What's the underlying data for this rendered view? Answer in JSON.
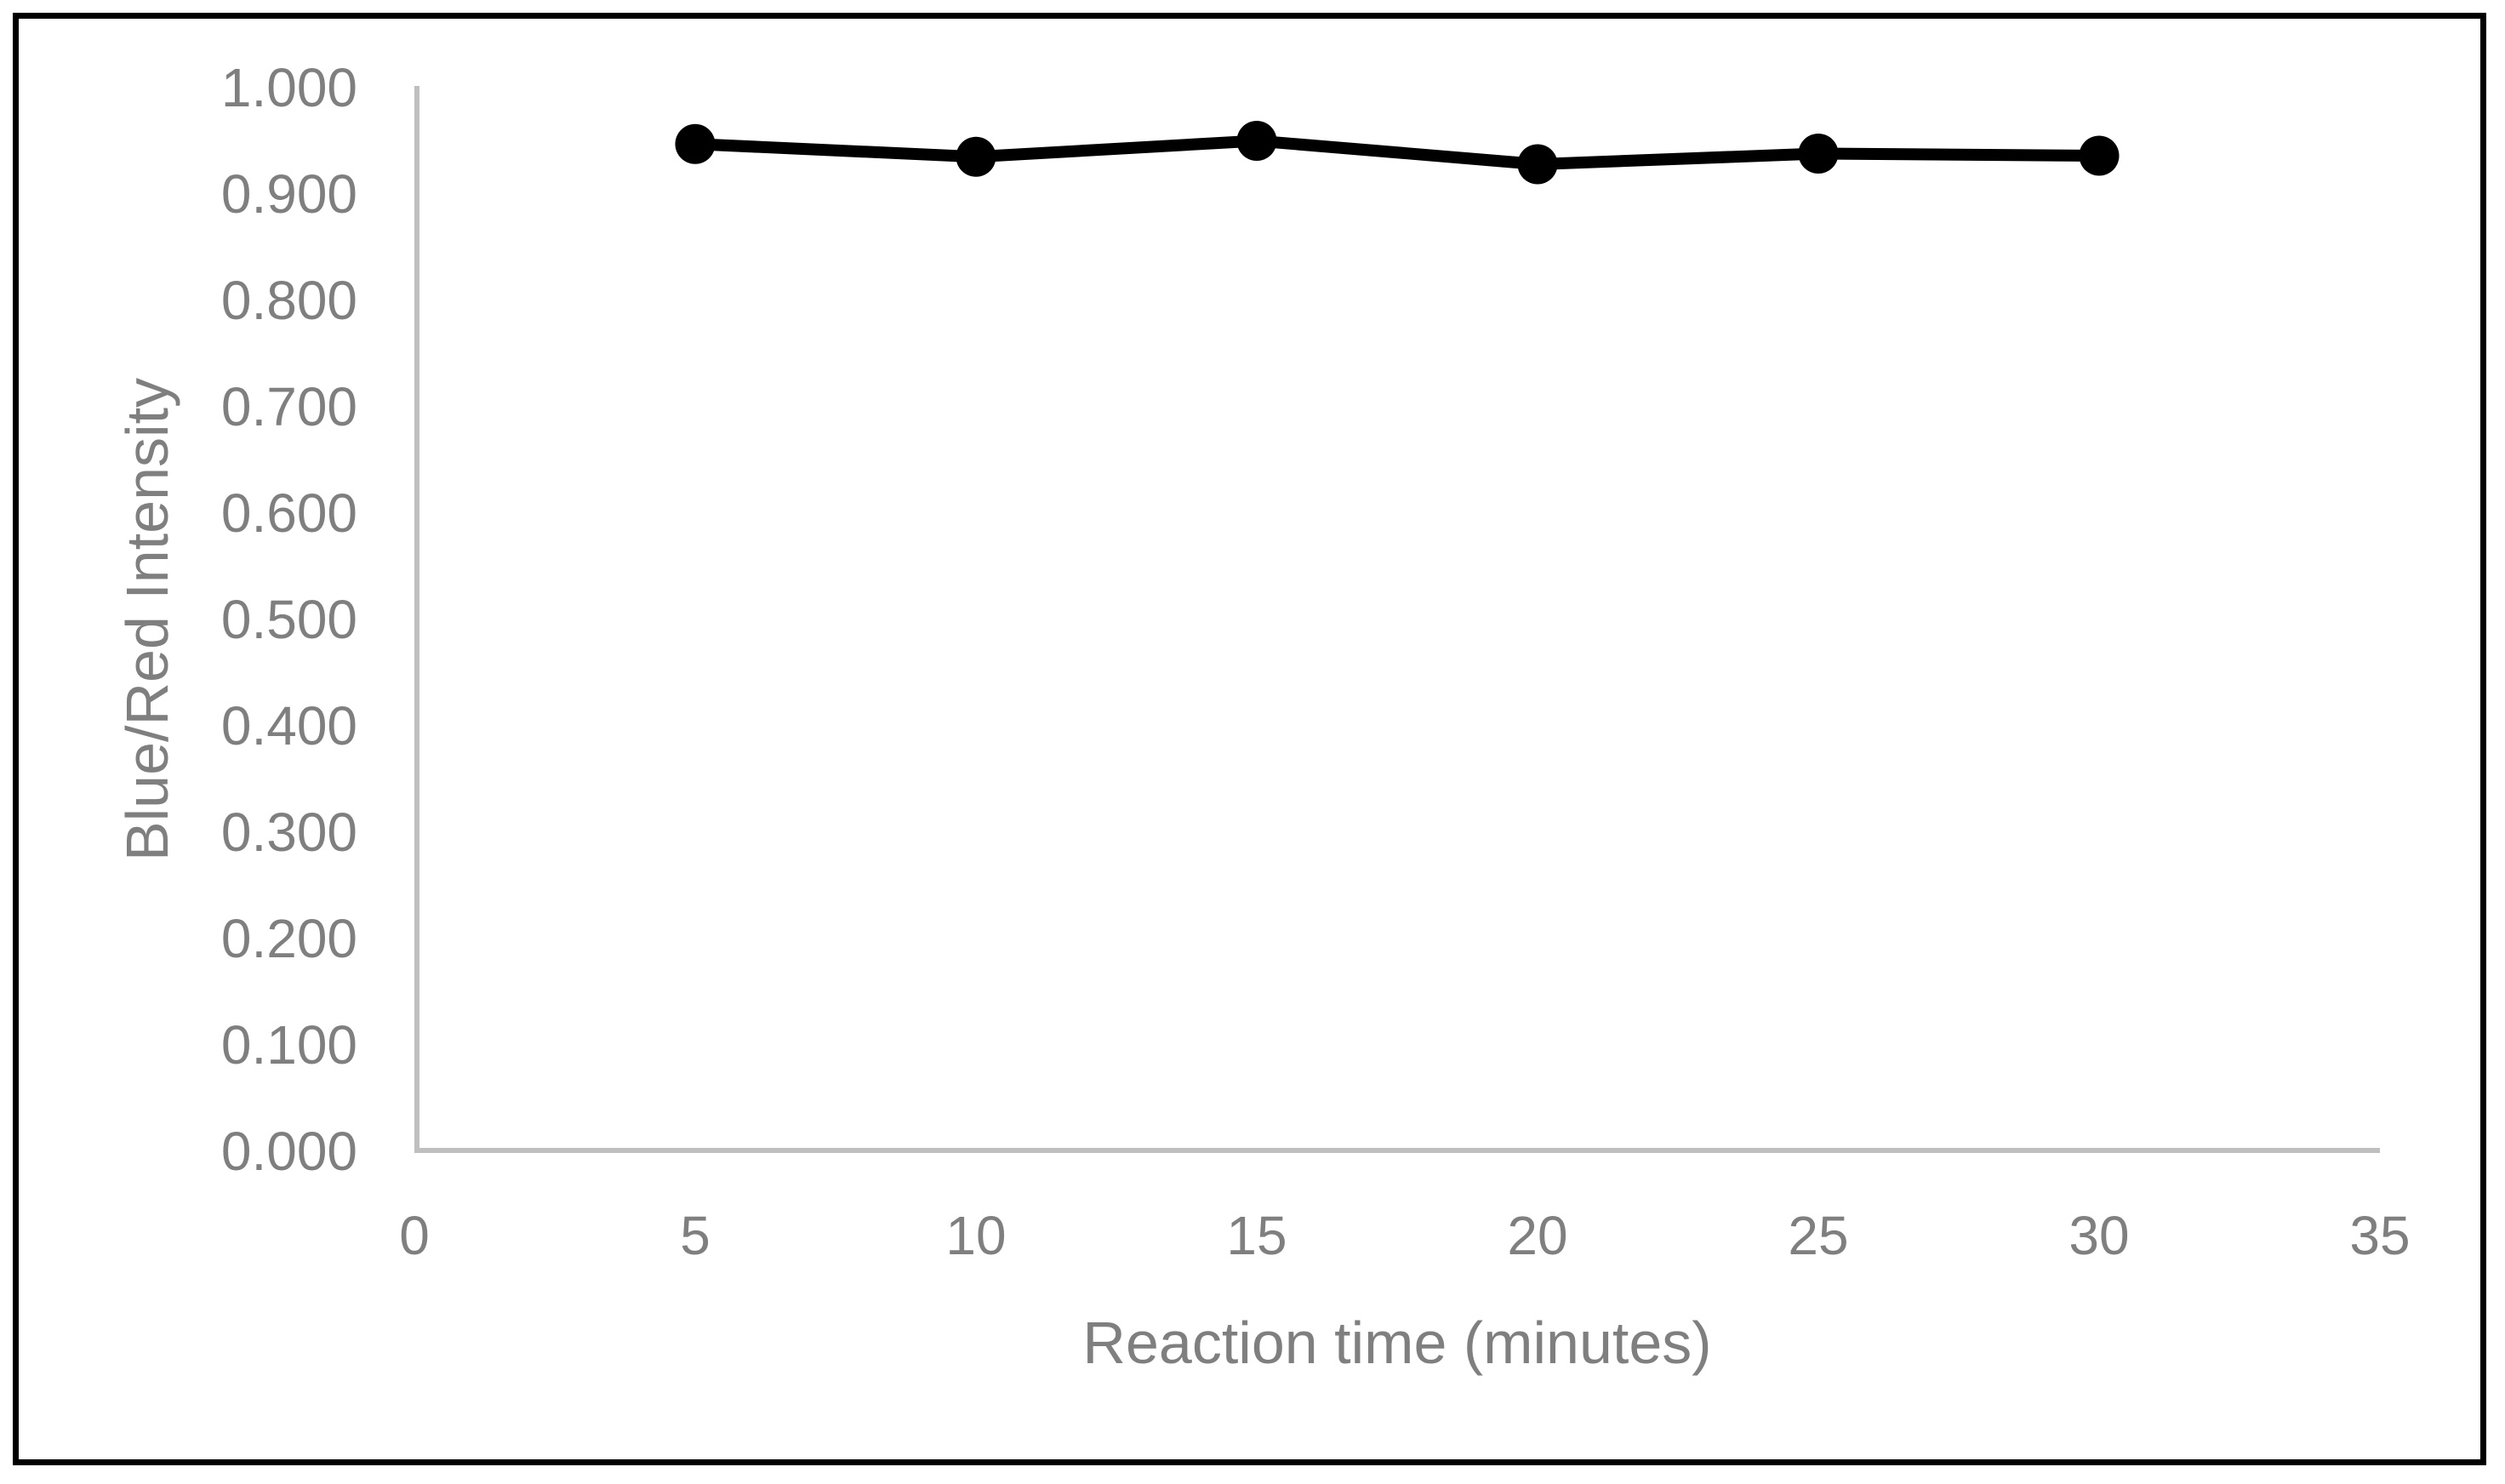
{
  "chart_data": {
    "type": "line",
    "title": "",
    "xlabel": "Reaction time (minutes)",
    "ylabel": "Blue/Red Intensity",
    "x": [
      5,
      10,
      15,
      20,
      25,
      30
    ],
    "series": [
      {
        "name": "Blue/Red Intensity",
        "values": [
          0.947,
          0.935,
          0.95,
          0.928,
          0.938,
          0.936
        ]
      }
    ],
    "xlim": [
      0,
      35
    ],
    "ylim": [
      0.0,
      1.0
    ],
    "x_ticks": [
      "0",
      "5",
      "10",
      "15",
      "20",
      "25",
      "30",
      "35"
    ],
    "y_ticks": [
      "0.000",
      "0.100",
      "0.200",
      "0.300",
      "0.400",
      "0.500",
      "0.600",
      "0.700",
      "0.800",
      "0.900",
      "1.000"
    ],
    "grid": false,
    "legend": false,
    "marker": "circle",
    "colors": {
      "series_line": "#000000",
      "marker_fill": "#000000",
      "axis_line": "#bfbfbf",
      "label_text": "#7f7f7f",
      "figure_border": "#000000",
      "background": "#ffffff"
    }
  }
}
